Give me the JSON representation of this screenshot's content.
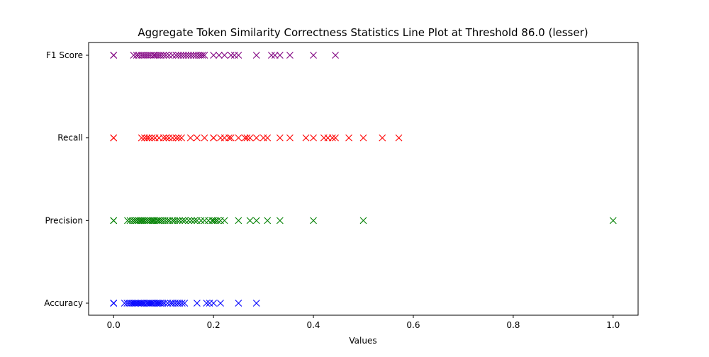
{
  "chart_data": {
    "type": "scatter",
    "title": "Aggregate Token Similarity Correctness Statistics Line Plot at Threshold 86.0 (lesser)",
    "xlabel": "Values",
    "ylabel": "",
    "xlim": [
      -0.05,
      1.05
    ],
    "x_ticks": [
      0.0,
      0.2,
      0.4,
      0.6,
      0.8,
      1.0
    ],
    "x_tick_labels": [
      "0.0",
      "0.2",
      "0.4",
      "0.6",
      "0.8",
      "1.0"
    ],
    "categories": [
      "Accuracy",
      "Precision",
      "Recall",
      "F1 Score"
    ],
    "grid": false,
    "marker": "x",
    "series": [
      {
        "category": "Accuracy",
        "color": "#0000ff",
        "values": [
          0.0,
          0.0,
          0.0,
          0.022,
          0.027,
          0.031,
          0.035,
          0.038,
          0.041,
          0.044,
          0.047,
          0.05,
          0.053,
          0.056,
          0.059,
          0.062,
          0.066,
          0.069,
          0.072,
          0.075,
          0.078,
          0.081,
          0.085,
          0.088,
          0.091,
          0.094,
          0.098,
          0.102,
          0.108,
          0.114,
          0.118,
          0.123,
          0.128,
          0.132,
          0.137,
          0.142,
          0.167,
          0.186,
          0.192,
          0.2,
          0.214,
          0.25,
          0.286
        ]
      },
      {
        "category": "Precision",
        "color": "#008000",
        "values": [
          0.0,
          0.0,
          0.028,
          0.033,
          0.038,
          0.042,
          0.046,
          0.05,
          0.053,
          0.056,
          0.059,
          0.062,
          0.066,
          0.07,
          0.074,
          0.077,
          0.08,
          0.083,
          0.087,
          0.09,
          0.094,
          0.098,
          0.103,
          0.108,
          0.112,
          0.118,
          0.122,
          0.127,
          0.132,
          0.138,
          0.143,
          0.15,
          0.156,
          0.162,
          0.167,
          0.175,
          0.182,
          0.19,
          0.197,
          0.2,
          0.204,
          0.208,
          0.214,
          0.222,
          0.25,
          0.273,
          0.286,
          0.308,
          0.333,
          0.4,
          0.5,
          1.0
        ]
      },
      {
        "category": "Recall",
        "color": "#ff0000",
        "values": [
          0.0,
          0.0,
          0.056,
          0.062,
          0.067,
          0.071,
          0.077,
          0.083,
          0.091,
          0.1,
          0.105,
          0.111,
          0.118,
          0.125,
          0.13,
          0.136,
          0.154,
          0.167,
          0.182,
          0.2,
          0.2,
          0.214,
          0.222,
          0.231,
          0.235,
          0.25,
          0.263,
          0.267,
          0.273,
          0.286,
          0.3,
          0.308,
          0.333,
          0.353,
          0.385,
          0.4,
          0.421,
          0.429,
          0.438,
          0.444,
          0.471,
          0.5,
          0.538,
          0.571
        ]
      },
      {
        "category": "F1 Score",
        "color": "#800080",
        "values": [
          0.0,
          0.0,
          0.04,
          0.046,
          0.05,
          0.055,
          0.059,
          0.063,
          0.067,
          0.071,
          0.075,
          0.08,
          0.083,
          0.087,
          0.091,
          0.095,
          0.1,
          0.105,
          0.111,
          0.118,
          0.125,
          0.13,
          0.135,
          0.14,
          0.145,
          0.15,
          0.155,
          0.16,
          0.165,
          0.17,
          0.174,
          0.178,
          0.182,
          0.2,
          0.211,
          0.222,
          0.235,
          0.242,
          0.25,
          0.286,
          0.316,
          0.323,
          0.333,
          0.353,
          0.4,
          0.444
        ]
      }
    ]
  }
}
